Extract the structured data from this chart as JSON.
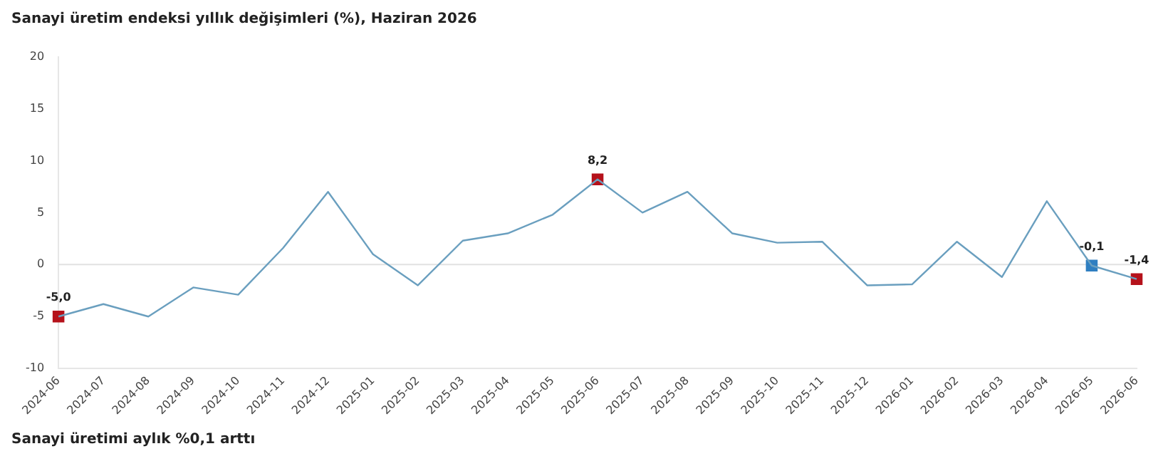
{
  "chart_data": {
    "type": "line",
    "title": "Sanayi üretim endeksi yıllık değişimleri (%), Haziran 2026",
    "categories": [
      "2024-06",
      "2024-07",
      "2024-08",
      "2024-09",
      "2024-10",
      "2024-11",
      "2024-12",
      "2025-01",
      "2025-02",
      "2025-03",
      "2025-04",
      "2025-05",
      "2025-06",
      "2025-07",
      "2025-08",
      "2025-09",
      "2025-10",
      "2025-11",
      "2025-12",
      "2026-01",
      "2026-02",
      "2026-03",
      "2026-04",
      "2026-05",
      "2026-06"
    ],
    "series": [
      {
        "color": "#6a9fbf",
        "values": [
          -5.0,
          -3.8,
          -5.0,
          -2.2,
          -2.9,
          1.6,
          7.0,
          1.0,
          -2.0,
          2.3,
          3.0,
          4.8,
          8.2,
          5.0,
          7.0,
          3.0,
          2.1,
          2.2,
          -2.0,
          -1.9,
          2.2,
          -1.2,
          6.1,
          -0.1,
          -1.4
        ]
      },
      {
        "type": "scatter",
        "marker": "square",
        "values": [
          -5.0,
          null,
          null,
          null,
          null,
          null,
          null,
          null,
          null,
          null,
          null,
          null,
          8.2,
          null,
          null,
          null,
          null,
          null,
          null,
          null,
          null,
          null,
          null,
          -0.1,
          -1.4
        ],
        "value_labels": [
          "-5,0",
          null,
          null,
          null,
          null,
          null,
          null,
          null,
          null,
          null,
          null,
          null,
          "8,2",
          null,
          null,
          null,
          null,
          null,
          null,
          null,
          null,
          null,
          null,
          "-0,1",
          "-1,4"
        ],
        "colors": [
          "#b5121b",
          null,
          null,
          null,
          null,
          null,
          null,
          null,
          null,
          null,
          null,
          null,
          "#b5121b",
          null,
          null,
          null,
          null,
          null,
          null,
          null,
          null,
          null,
          null,
          "#2f7fc1",
          "#b5121b"
        ]
      }
    ],
    "ylim": [
      -10,
      20
    ],
    "yticks": [
      -10,
      -5,
      0,
      5,
      10,
      15,
      20
    ],
    "grid": false,
    "legend": false,
    "ref_lines": [
      {
        "axis": "y",
        "value": 0,
        "color": "#e2e2e2"
      }
    ],
    "annotations": [
      "Sanayi üretimi aylık %0,1 arttı"
    ]
  }
}
